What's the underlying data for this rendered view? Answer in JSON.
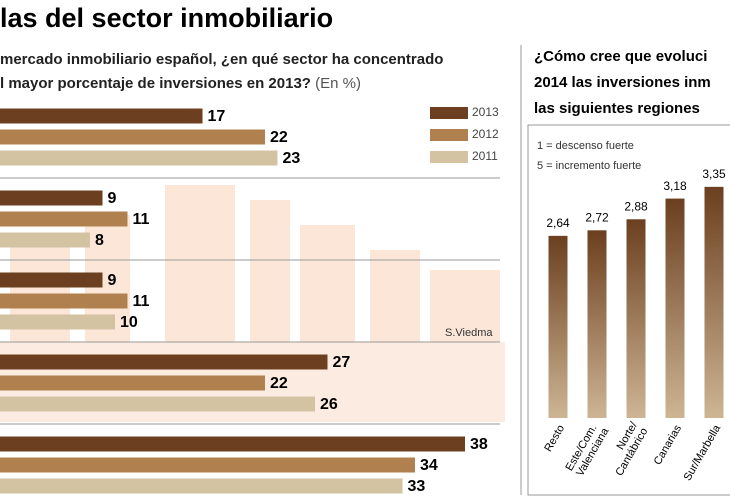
{
  "title": "las del sector inmobiliario",
  "credit": "S.Viedma",
  "chart_data": [
    {
      "type": "hbar",
      "title": [
        "mercado inmobiliario español, ¿en qué sector ha concentrado",
        "l mayor porcentaje de inversiones en 2013?"
      ],
      "unit_note": "(En %)",
      "categories": [
        null,
        null,
        null,
        null,
        null
      ],
      "series": [
        {
          "name": "2013",
          "color": "#6b3f1f",
          "values": [
            17,
            9,
            9,
            27,
            38
          ]
        },
        {
          "name": "2012",
          "color": "#b0814f",
          "values": [
            22,
            11,
            11,
            22,
            34
          ]
        },
        {
          "name": "2011",
          "color": "#d4c3a3",
          "values": [
            23,
            8,
            10,
            26,
            33
          ]
        }
      ]
    },
    {
      "type": "vbar",
      "title": [
        "¿Cómo cree que evoluci",
        "2014 las inversiones inm",
        "las siguientes regiones"
      ],
      "notes": [
        "1 = descenso fuerte",
        "5 = incremento fuerte"
      ],
      "categories": [
        "Resto",
        "Este/Com. Valenciana",
        "Norte/Cantábrico",
        "Canarias",
        "Sur/Marbella"
      ],
      "values": [
        2.64,
        2.72,
        2.88,
        3.18,
        3.35
      ],
      "value_labels": [
        "2,64",
        "2,72",
        "2,88",
        "3,18",
        "3,35"
      ],
      "color": "#6b3f1f"
    }
  ]
}
